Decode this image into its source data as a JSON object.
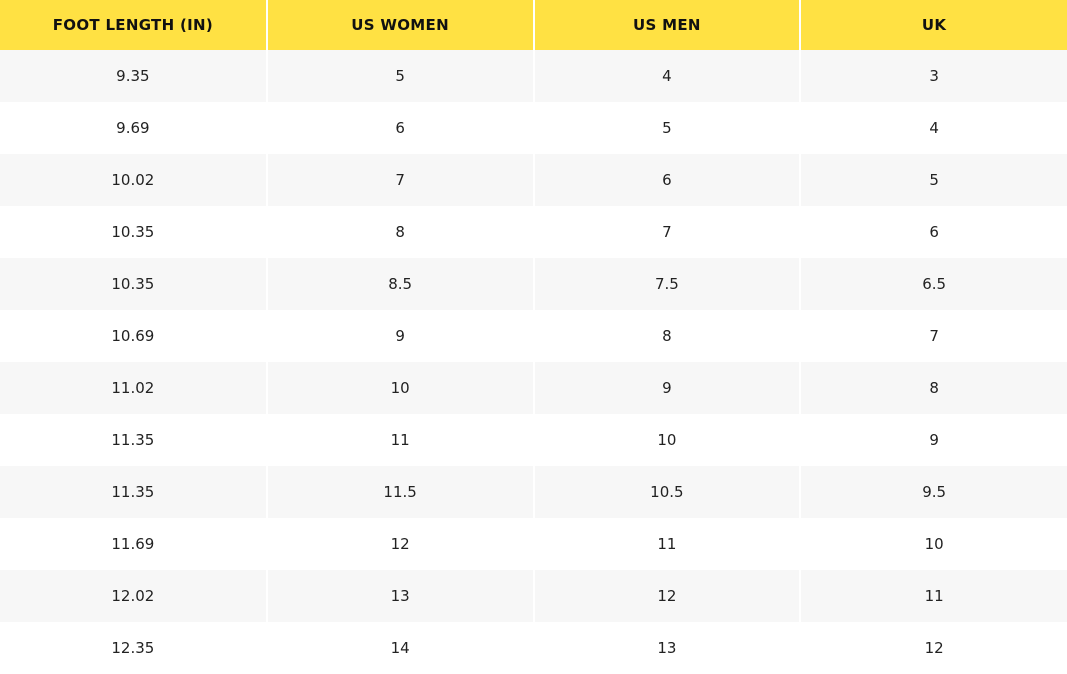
{
  "table": {
    "header": [
      "FOOT LENGTH (IN)",
      "US WOMEN",
      "US MEN",
      "UK"
    ],
    "rows": [
      [
        "9.35",
        "5",
        "4",
        "3"
      ],
      [
        "9.69",
        "6",
        "5",
        "4"
      ],
      [
        "10.02",
        "7",
        "6",
        "5"
      ],
      [
        "10.35",
        "8",
        "7",
        "6"
      ],
      [
        "10.35",
        "8.5",
        "7.5",
        "6.5"
      ],
      [
        "10.69",
        "9",
        "8",
        "7"
      ],
      [
        "11.02",
        "10",
        "9",
        "8"
      ],
      [
        "11.35",
        "11",
        "10",
        "9"
      ],
      [
        "11.35",
        "11.5",
        "10.5",
        "9.5"
      ],
      [
        "11.69",
        "12",
        "11",
        "10"
      ],
      [
        "12.02",
        "13",
        "12",
        "11"
      ],
      [
        "12.35",
        "14",
        "13",
        "12"
      ]
    ]
  }
}
